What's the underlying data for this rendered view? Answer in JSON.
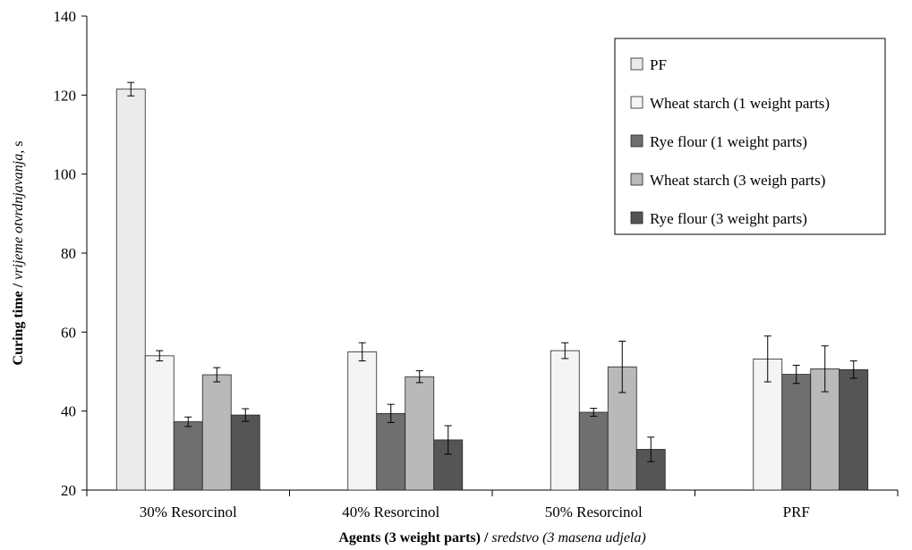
{
  "chart_data": {
    "type": "bar",
    "xlabel_bold": "Agents (3 weight parts)",
    "xlabel_sep": " / ",
    "xlabel_italic": "sredstvo (3 masena udjela)",
    "ylabel_bold": "Curing time",
    "ylabel_sep": " / ",
    "ylabel_italic": "vrijeme otvrdnjavanja",
    "ylabel_unit": ", s",
    "ylim": [
      20,
      140
    ],
    "yticks": [
      "20",
      "40",
      "60",
      "80",
      "100",
      "120",
      "140"
    ],
    "categories": [
      "30% Resorcinol",
      "40% Resorcinol",
      "50% Resorcinol",
      "PRF"
    ],
    "legend_position": "top-right",
    "grid": false,
    "series": [
      {
        "name": "PF",
        "color": "#ebebeb",
        "values": [
          121.5,
          null,
          null,
          null
        ],
        "errors": [
          1.7,
          null,
          null,
          null
        ]
      },
      {
        "name": "Wheat starch (1 weight parts)",
        "color": "#f4f4f4",
        "values": [
          54,
          55,
          55.3,
          53.2
        ],
        "errors": [
          1.3,
          2.3,
          2.0,
          5.8
        ]
      },
      {
        "name": "Rye flour (1 weight parts)",
        "color": "#6f6f6f",
        "values": [
          37.3,
          39.4,
          39.7,
          49.3
        ],
        "errors": [
          1.2,
          2.3,
          1.0,
          2.3
        ]
      },
      {
        "name": "Wheat starch (3 weigh parts)",
        "color": "#b9b9b9",
        "values": [
          49.2,
          48.7,
          51.2,
          50.7
        ],
        "errors": [
          1.8,
          1.5,
          6.5,
          5.8
        ]
      },
      {
        "name": "Rye flour (3 weight parts)",
        "color": "#555555",
        "values": [
          39,
          32.7,
          30.3,
          50.5
        ],
        "errors": [
          1.6,
          3.6,
          3.1,
          2.2
        ]
      }
    ]
  }
}
